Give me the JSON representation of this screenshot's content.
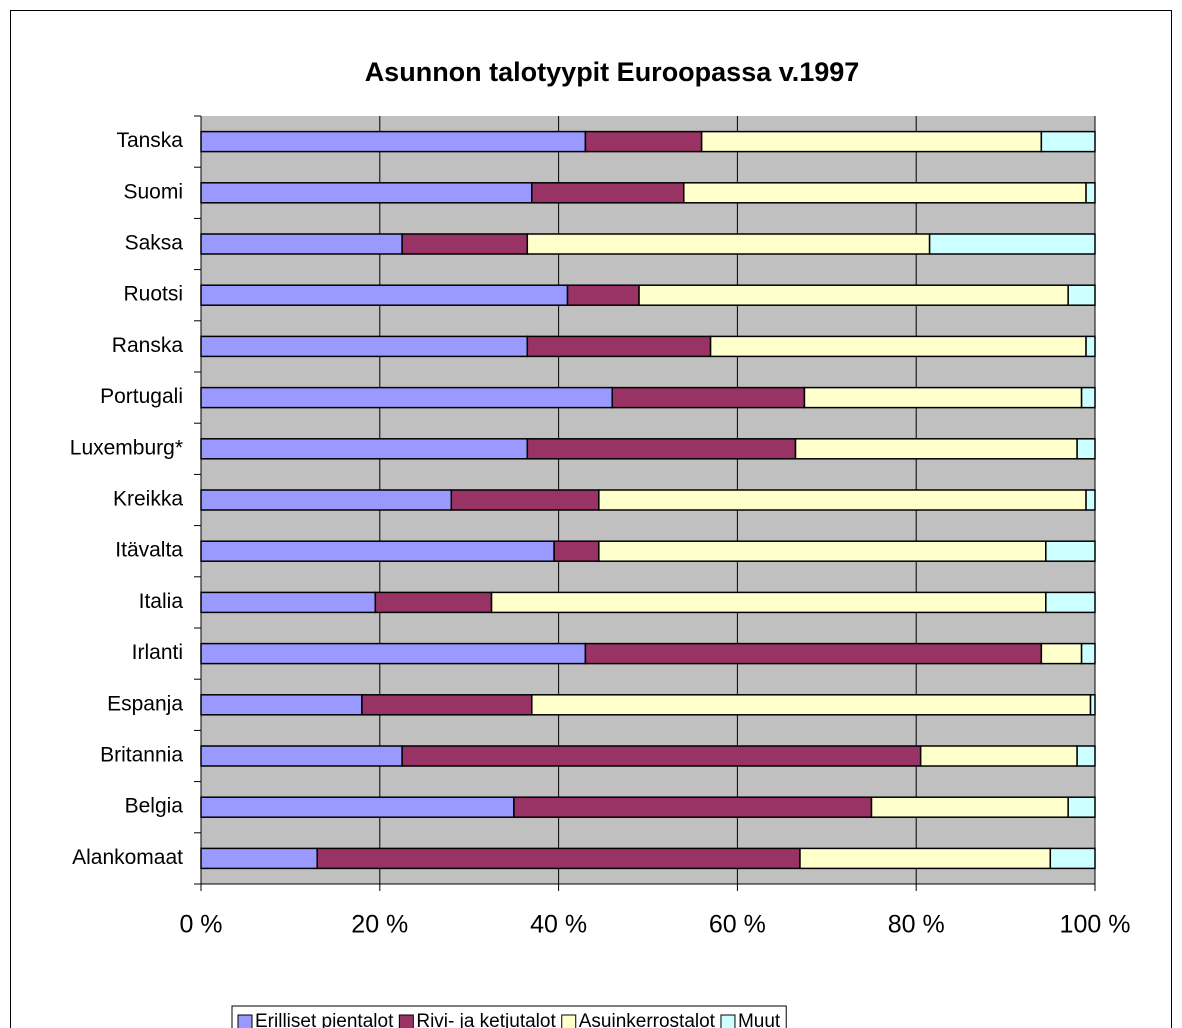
{
  "chart_data": {
    "type": "stacked_barh",
    "title": "Asunnon talotyypit Euroopassa v.1997",
    "categories": [
      "Tanska",
      "Suomi",
      "Saksa",
      "Ruotsi",
      "Ranska",
      "Portugali",
      "Luxemburg*",
      "Kreikka",
      "Itävalta",
      "Italia",
      "Irlanti",
      "Espanja",
      "Britannia",
      "Belgia",
      "Alankomaat"
    ],
    "series": [
      {
        "name": "Erilliset pientalot",
        "color": "#9999ff",
        "values": [
          43,
          37,
          22.5,
          41,
          36.5,
          46,
          36.5,
          28,
          39.5,
          19.5,
          43,
          18,
          22.5,
          35,
          13
        ]
      },
      {
        "name": "Rivi- ja ketjutalot",
        "color": "#993366",
        "values": [
          13,
          17,
          14,
          8,
          20.5,
          21.5,
          30,
          16.5,
          5,
          13,
          51,
          19,
          58,
          40,
          54
        ]
      },
      {
        "name": "Asuinkerrostalot",
        "color": "#ffffcc",
        "values": [
          38,
          45,
          45,
          48,
          42,
          31,
          31.5,
          54.5,
          50,
          62,
          4.5,
          62.5,
          17.5,
          22,
          28
        ]
      },
      {
        "name": "Muut",
        "color": "#ccffff",
        "values": [
          6,
          1,
          18.5,
          3,
          1,
          1.5,
          2,
          1,
          5.5,
          5.5,
          1.5,
          0.5,
          2,
          3,
          5
        ]
      }
    ],
    "xlim": [
      0,
      100
    ],
    "xticks": [
      {
        "value": 0,
        "label": "0 %"
      },
      {
        "value": 20,
        "label": "20 %"
      },
      {
        "value": 40,
        "label": "40 %"
      },
      {
        "value": 60,
        "label": "60 %"
      },
      {
        "value": 80,
        "label": "80 %"
      },
      {
        "value": 100,
        "label": "100 %"
      }
    ],
    "grid": true,
    "legend": "bottom"
  }
}
